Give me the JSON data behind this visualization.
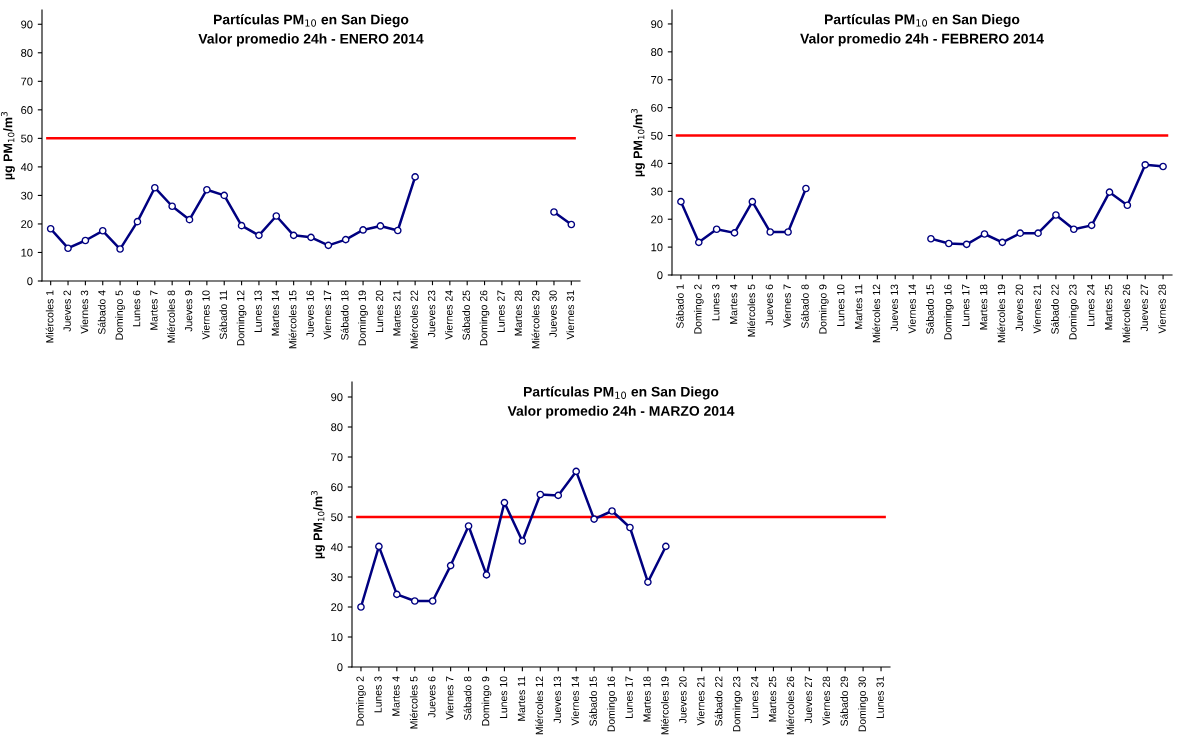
{
  "chart_data": [
    {
      "type": "line",
      "title": "Partículas PM$_{10}$ en San Diego\nValor promedio 24h - ENERO 2014",
      "ylabel": "µg PM$_{10}$/m$^{3}$",
      "categories": [
        "Miércoles 1",
        "Jueves 2",
        "Viernes 3",
        "Sábado 4",
        "Domingo 5",
        "Lunes 6",
        "Martes 7",
        "Miércoles 8",
        "Jueves 9",
        "Viernes 10",
        "Sábado 11",
        "Domingo 12",
        "Lunes 13",
        "Martes 14",
        "Miércoles 15",
        "Jueves 16",
        "Viernes 17",
        "Sábado 18",
        "Domingo 19",
        "Lunes 20",
        "Martes 21",
        "Miércoles 22",
        "Jueves 23",
        "Viernes 24",
        "Sábado 25",
        "Domingo 26",
        "Lunes 27",
        "Martes 28",
        "Miércoles 29",
        "Jueves 30",
        "Viernes 31"
      ],
      "series": [
        {
          "color": "#000080",
          "values": [
            18.3,
            11.5,
            14.2,
            17.6,
            11.2,
            20.8,
            32.7,
            26.2,
            21.5,
            32,
            30,
            19.4,
            16,
            22.8,
            16,
            15.3,
            12.5,
            14.5,
            17.9,
            19.3,
            17.7,
            36.5,
            null,
            null,
            null,
            null,
            null,
            null,
            null,
            24.2,
            19.8
          ]
        }
      ],
      "ylim": [
        0,
        95
      ],
      "yticks": [
        0,
        10,
        20,
        30,
        40,
        50,
        60,
        70,
        80,
        90
      ],
      "marker": "circle",
      "line_style": "solid",
      "grid": false,
      "legend": false,
      "ref_lines": [
        {
          "axis": "y",
          "value": 50,
          "label": null,
          "color": "#ff0000"
        }
      ]
    },
    {
      "type": "line",
      "title": "Partículas PM$_{10}$ en San Diego\nValor promedio 24h - FEBRERO 2014",
      "ylabel": "µg PM$_{10}$/m$^{3}$",
      "categories": [
        "Sábado 1",
        "Domingo 2",
        "Lunes 3",
        "Martes 4",
        "Miércoles 5",
        "Jueves 6",
        "Viernes 7",
        "Sábado 8",
        "Domingo 9",
        "Lunes 10",
        "Martes 11",
        "Miércoles 12",
        "Jueves 13",
        "Viernes 14",
        "Sábado 15",
        "Domingo 16",
        "Lunes 17",
        "Martes 18",
        "Miércoles 19",
        "Jueves 20",
        "Viernes 21",
        "Sábado 22",
        "Domingo 23",
        "Lunes 24",
        "Martes 25",
        "Miércoles 26",
        "Jueves 27",
        "Viernes 28"
      ],
      "series": [
        {
          "color": "#000080",
          "values": [
            26.3,
            11.7,
            16.4,
            15.1,
            26.3,
            15.4,
            15.4,
            31,
            null,
            null,
            null,
            null,
            null,
            null,
            13,
            11.3,
            11,
            14.7,
            11.7,
            15,
            15,
            21.5,
            16.4,
            17.8,
            29.7,
            25,
            39.5,
            38.9
          ]
        }
      ],
      "ylim": [
        0,
        95
      ],
      "yticks": [
        0,
        10,
        20,
        30,
        40,
        50,
        60,
        70,
        80,
        90
      ],
      "marker": "circle",
      "line_style": "solid",
      "grid": false,
      "legend": false,
      "ref_lines": [
        {
          "axis": "y",
          "value": 50,
          "label": null,
          "color": "#ff0000"
        }
      ]
    },
    {
      "type": "line",
      "title": "Partículas PM$_{10}$ en San Diego\nValor promedio 24h - MARZO 2014",
      "ylabel": "µg PM$_{10}$/m$^{3}$",
      "categories": [
        "Domingo 2",
        "Lunes 3",
        "Martes 4",
        "Miércoles 5",
        "Jueves 6",
        "Viernes 7",
        "Sábado 8",
        "Domingo 9",
        "Lunes 10",
        "Martes 11",
        "Miércoles 12",
        "Jueves 13",
        "Viernes 14",
        "Sábado 15",
        "Domingo 16",
        "Lunes 17",
        "Martes 18",
        "Miércoles 19",
        "Jueves 20",
        "Viernes 21",
        "Sábado 22",
        "Domingo 23",
        "Lunes 24",
        "Martes 25",
        "Miércoles 26",
        "Jueves 27",
        "Viernes 28",
        "Sábado 29",
        "Domingo 30",
        "Lunes 31"
      ],
      "series": [
        {
          "color": "#000080",
          "values": [
            20,
            40.2,
            24.2,
            22,
            22,
            33.8,
            47,
            30.7,
            54.8,
            42,
            57.5,
            57.2,
            65.2,
            49.3,
            52,
            46.5,
            28.3,
            40.2,
            null,
            null,
            null,
            null,
            null,
            null,
            null,
            null,
            null,
            null,
            null,
            null
          ]
        }
      ],
      "ylim": [
        0,
        95
      ],
      "yticks": [
        0,
        10,
        20,
        30,
        40,
        50,
        60,
        70,
        80,
        90
      ],
      "marker": "circle",
      "line_style": "solid",
      "grid": false,
      "legend": false,
      "ref_lines": [
        {
          "axis": "y",
          "value": 50,
          "label": null,
          "color": "#ff0000"
        }
      ]
    }
  ]
}
